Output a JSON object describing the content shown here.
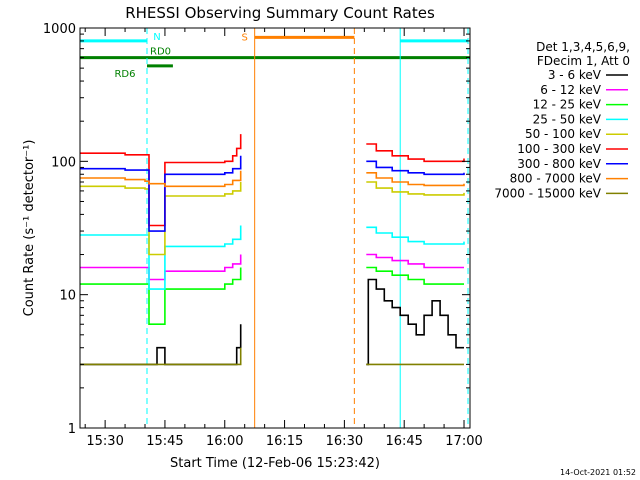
{
  "chart_data": {
    "type": "line",
    "title": "RHESSI Observing Summary Count Rates",
    "xlabel": "Start Time (12-Feb-06 15:23:42)",
    "ylabel": "Count Rate (s⁻¹ detector⁻¹)",
    "yscale": "log",
    "ylim": [
      1,
      1000
    ],
    "xlim": [
      "15:23:42",
      "17:01:30"
    ],
    "x_ticks": [
      "15:30",
      "15:45",
      "16:00",
      "16:15",
      "16:30",
      "16:45",
      "17:00"
    ],
    "y_ticks": [
      "1",
      "10",
      "100",
      "1000"
    ],
    "timestamp": "14-Oct-2021 01:52",
    "legend": {
      "position": "right",
      "header": [
        "Det 1,3,4,5,6,9,",
        "FDecim 1, Att 0"
      ]
    },
    "series": [
      {
        "name": "3 - 6 keV",
        "color": "#000000",
        "segments": [
          {
            "t": [
              "15:23:42",
              "15:35:00",
              "15:40:00",
              "15:42:00",
              "15:43:00",
              "15:44:00",
              "15:45:00",
              "15:50:00",
              "15:55:00",
              "16:00:00",
              "16:02:00",
              "16:03:00",
              "16:04:00"
            ],
            "v": [
              3,
              3,
              3,
              3,
              4,
              4,
              3,
              3,
              3,
              3,
              3,
              4,
              6
            ]
          },
          {
            "t": [
              "16:35:30",
              "16:36:00",
              "16:38:00",
              "16:40:00",
              "16:42:00",
              "16:44:00",
              "16:46:00",
              "16:48:00",
              "16:50:00",
              "16:52:00",
              "16:54:00",
              "16:56:00",
              "16:58:00",
              "17:00:00"
            ],
            "v": [
              3,
              13,
              11,
              9,
              8,
              7,
              6,
              5,
              7,
              9,
              7,
              5,
              4,
              4
            ]
          }
        ]
      },
      {
        "name": "6 - 12 keV",
        "color": "#ff00ff",
        "segments": [
          {
            "t": [
              "15:23:42",
              "15:35:00",
              "15:40:00",
              "15:41:00",
              "15:44:00",
              "15:45:00",
              "15:50:00",
              "15:55:00",
              "16:00:00",
              "16:02:00",
              "16:04:00"
            ],
            "v": [
              16,
              16,
              16,
              13,
              13,
              15,
              15,
              15,
              16,
              17,
              20
            ]
          },
          {
            "t": [
              "16:35:30",
              "16:38:00",
              "16:42:00",
              "16:46:00",
              "16:50:00",
              "16:55:00",
              "17:00:00"
            ],
            "v": [
              20,
              19,
              18,
              17,
              16,
              16,
              16
            ]
          }
        ]
      },
      {
        "name": "12 - 25 keV",
        "color": "#00ff00",
        "segments": [
          {
            "t": [
              "15:23:42",
              "15:35:00",
              "15:40:00",
              "15:41:00",
              "15:44:00",
              "15:45:00",
              "15:50:00",
              "15:55:00",
              "16:00:00",
              "16:02:00",
              "16:04:00"
            ],
            "v": [
              12,
              12,
              12,
              6,
              6,
              11,
              11,
              11,
              12,
              13,
              16
            ]
          },
          {
            "t": [
              "16:35:30",
              "16:38:00",
              "16:42:00",
              "16:46:00",
              "16:50:00",
              "16:55:00",
              "17:00:00"
            ],
            "v": [
              16,
              15,
              14,
              13,
              12,
              12,
              12
            ]
          }
        ]
      },
      {
        "name": "25 - 50 keV",
        "color": "#00ffff",
        "segments": [
          {
            "t": [
              "15:23:42",
              "15:35:00",
              "15:40:00",
              "15:41:00",
              "15:44:00",
              "15:45:00",
              "15:50:00",
              "15:55:00",
              "16:00:00",
              "16:02:00",
              "16:04:00"
            ],
            "v": [
              28,
              28,
              28,
              11,
              11,
              23,
              23,
              23,
              24,
              26,
              33
            ]
          },
          {
            "t": [
              "16:35:30",
              "16:38:00",
              "16:42:00",
              "16:46:00",
              "16:50:00",
              "16:55:00",
              "17:00:00"
            ],
            "v": [
              32,
              29,
              27,
              25,
              24,
              24,
              25
            ]
          }
        ]
      },
      {
        "name": "50 - 100 keV",
        "color": "#cccc00",
        "segments": [
          {
            "t": [
              "15:23:42",
              "15:35:00",
              "15:40:00",
              "15:41:00",
              "15:44:00",
              "15:45:00",
              "15:50:00",
              "15:55:00",
              "16:00:00",
              "16:02:00",
              "16:04:00"
            ],
            "v": [
              65,
              63,
              62,
              20,
              20,
              55,
              55,
              55,
              57,
              60,
              70
            ]
          },
          {
            "t": [
              "16:35:30",
              "16:38:00",
              "16:42:00",
              "16:46:00",
              "16:50:00",
              "16:55:00",
              "17:00:00"
            ],
            "v": [
              70,
              63,
              59,
              57,
              56,
              56,
              58
            ]
          }
        ]
      },
      {
        "name": "100 - 300 keV",
        "color": "#ff0000",
        "segments": [
          {
            "t": [
              "15:23:42",
              "15:35:00",
              "15:40:00",
              "15:41:00",
              "15:44:00",
              "15:45:00",
              "15:50:00",
              "15:55:00",
              "16:00:00",
              "16:02:00",
              "16:03:00",
              "16:04:00"
            ],
            "v": [
              115,
              112,
              112,
              33,
              33,
              98,
              98,
              98,
              100,
              110,
              125,
              160
            ]
          },
          {
            "t": [
              "16:35:30",
              "16:38:00",
              "16:42:00",
              "16:46:00",
              "16:50:00",
              "16:55:00",
              "17:00:00"
            ],
            "v": [
              135,
              120,
              110,
              104,
              100,
              100,
              105
            ]
          }
        ]
      },
      {
        "name": "300 - 800 keV",
        "color": "#0000ff",
        "segments": [
          {
            "t": [
              "15:23:42",
              "15:35:00",
              "15:40:00",
              "15:41:00",
              "15:44:00",
              "15:45:00",
              "15:50:00",
              "15:55:00",
              "16:00:00",
              "16:02:00",
              "16:04:00"
            ],
            "v": [
              88,
              86,
              86,
              30,
              30,
              80,
              80,
              80,
              82,
              88,
              110
            ]
          },
          {
            "t": [
              "16:35:30",
              "16:38:00",
              "16:42:00",
              "16:46:00",
              "16:50:00",
              "16:55:00",
              "17:00:00"
            ],
            "v": [
              100,
              90,
              85,
              82,
              80,
              80,
              82
            ]
          }
        ]
      },
      {
        "name": "800 - 7000 keV",
        "color": "#ff8000",
        "segments": [
          {
            "t": [
              "15:23:42",
              "15:35:00",
              "15:40:00",
              "15:41:00",
              "15:44:00",
              "15:45:00",
              "15:50:00",
              "15:55:00",
              "16:00:00",
              "16:02:00",
              "16:04:00"
            ],
            "v": [
              75,
              73,
              71,
              68,
              68,
              65,
              65,
              65,
              67,
              72,
              85
            ]
          },
          {
            "t": [
              "16:35:30",
              "16:38:00",
              "16:42:00",
              "16:46:00",
              "16:50:00",
              "16:55:00",
              "17:00:00"
            ],
            "v": [
              82,
              75,
              70,
              67,
              66,
              66,
              68
            ]
          }
        ]
      },
      {
        "name": "7000 - 15000 keV",
        "color": "#808000",
        "segments": [
          {
            "t": [
              "15:23:42",
              "15:30:00",
              "15:40:00",
              "15:45:00",
              "15:50:00",
              "15:55:00",
              "16:00:00",
              "16:02:00",
              "16:04:00"
            ],
            "v": [
              3,
              3,
              3,
              3,
              3,
              3,
              3,
              3,
              4
            ]
          },
          {
            "t": [
              "16:35:30",
              "16:40:00",
              "16:45:00",
              "16:50:00",
              "16:55:00",
              "17:00:00"
            ],
            "v": [
              3,
              3,
              3,
              3,
              3,
              3
            ]
          }
        ]
      }
    ],
    "flag_bars": [
      {
        "label": "N",
        "color": "#00ffff",
        "y": 800,
        "spans": [
          [
            "15:23:42",
            "15:40:30"
          ],
          [
            "16:44:00",
            "17:01:00"
          ]
        ]
      },
      {
        "label": "RD0",
        "color": "#008000",
        "y": 600,
        "spans": [
          [
            "15:23:42",
            "17:01:30"
          ]
        ]
      },
      {
        "label": "RD6",
        "color": "#008000",
        "y": 520,
        "spans": [
          [
            "15:40:30",
            "15:47:00"
          ]
        ]
      },
      {
        "label": "S",
        "color": "#ff8000",
        "y": 850,
        "spans": [
          [
            "16:07:30",
            "16:32:30"
          ]
        ]
      }
    ],
    "vlines": [
      {
        "t": "15:23:42",
        "color": "#00ffff",
        "style": "solid"
      },
      {
        "t": "15:40:30",
        "color": "#00ffff",
        "style": "dashed"
      },
      {
        "t": "16:44:00",
        "color": "#00ffff",
        "style": "solid"
      },
      {
        "t": "17:01:00",
        "color": "#00ffff",
        "style": "dashed"
      },
      {
        "t": "16:07:30",
        "color": "#ff8000",
        "style": "solid"
      },
      {
        "t": "16:32:30",
        "color": "#ff8000",
        "style": "dashed"
      }
    ]
  }
}
